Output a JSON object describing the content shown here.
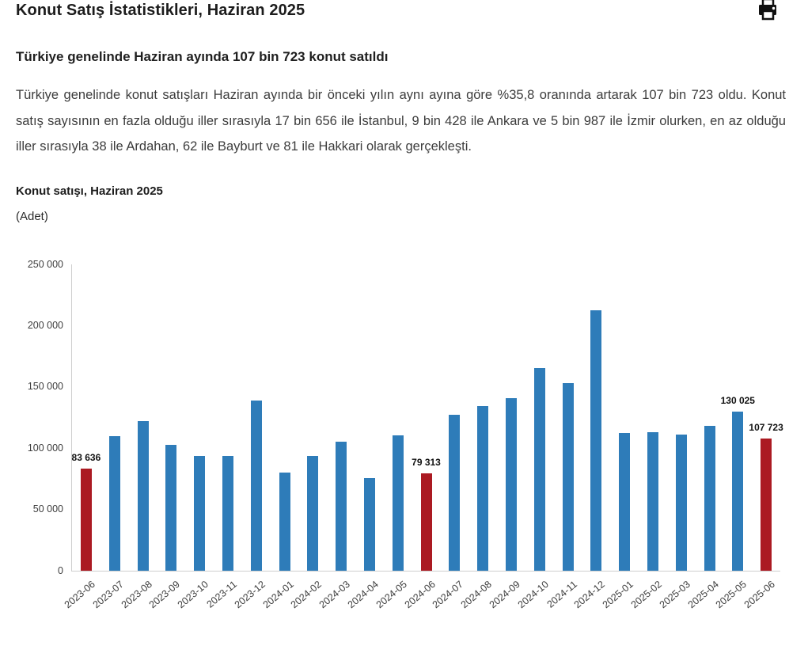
{
  "header": {
    "title": "Konut Satış İstatistikleri, Haziran 2025",
    "print_icon": "printer-icon"
  },
  "article": {
    "subtitle": "Türkiye genelinde Haziran ayında 107 bin 723 konut satıldı",
    "paragraph": "Türkiye genelinde konut satışları Haziran ayında bir önceki yılın aynı ayına göre %35,8 oranında artarak 107 bin 723 oldu. Konut satış sayısının en fazla olduğu iller sırasıyla 17 bin 656 ile İstanbul, 9 bin 428 ile Ankara ve 5 bin 987 ile İzmir olurken, en az olduğu iller sırasıyla 38 ile Ardahan, 62 ile Bayburt ve 81 ile Hakkari olarak gerçekleşti."
  },
  "chart": {
    "title": "Konut satışı, Haziran 2025",
    "unit": "(Adet)"
  },
  "chart_data": {
    "type": "bar",
    "title": "Konut satışı, Haziran 2025",
    "unit_label": "(Adet)",
    "categories": [
      "2023-06",
      "2023-07",
      "2023-08",
      "2023-09",
      "2023-10",
      "2023-11",
      "2023-12",
      "2024-01",
      "2024-02",
      "2024-03",
      "2024-04",
      "2024-05",
      "2024-06",
      "2024-07",
      "2024-08",
      "2024-09",
      "2024-10",
      "2024-11",
      "2024-12",
      "2025-01",
      "2025-02",
      "2025-03",
      "2025-04",
      "2025-05",
      "2025-06"
    ],
    "values": [
      83636,
      109548,
      122091,
      102656,
      93761,
      93514,
      138577,
      80308,
      93902,
      105476,
      75569,
      110588,
      79313,
      127088,
      134155,
      140919,
      165138,
      153014,
      212637,
      112173,
      112818,
      110795,
      118359,
      130025,
      107723
    ],
    "highlighted_indices": [
      0,
      12,
      24
    ],
    "data_labels": {
      "0": "83 636",
      "12": "79 313",
      "23": "130 025",
      "24": "107 723"
    },
    "colors": {
      "bar": "#2e7cb9",
      "highlight": "#ab1a22",
      "axis": "#cfcfcf"
    },
    "ylim": [
      0,
      250000
    ],
    "ytick_interval": 50000,
    "ytick_labels": [
      "0",
      "50 000",
      "100 000",
      "150 000",
      "200 000",
      "250 000"
    ],
    "grid": false,
    "legend": false
  }
}
